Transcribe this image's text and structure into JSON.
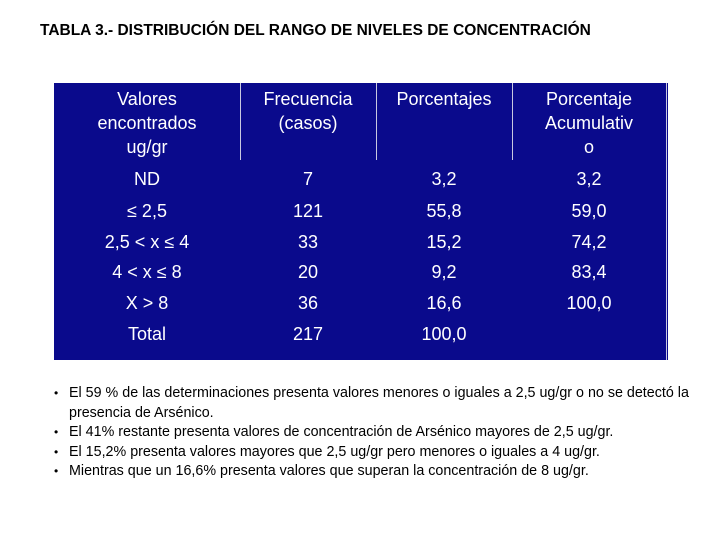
{
  "title": "TABLA 3.-  DISTRIBUCIÓN DEL RANGO DE NIVELES DE CONCENTRACIÓN",
  "table": {
    "headers": [
      [
        "Valores",
        "encontrados",
        "ug/gr"
      ],
      [
        "Frecuencia",
        "(casos)"
      ],
      [
        "Porcentajes"
      ],
      [
        "Porcentaje",
        "Acumulativ",
        "o"
      ]
    ],
    "rows": [
      [
        "ND",
        "7",
        "3,2",
        "3,2"
      ],
      [
        "≤ 2,5",
        "121",
        "55,8",
        "59,0"
      ],
      [
        "2,5 < x ≤ 4",
        "33",
        "15,2",
        "74,2"
      ],
      [
        "4 < x  ≤  8",
        "20",
        "9,2",
        "83,4"
      ],
      [
        "X > 8",
        "36",
        "16,6",
        "100,0"
      ],
      [
        "Total",
        "217",
        "100,0",
        ""
      ]
    ]
  },
  "bullets": [
    "El 59 % de las determinaciones presenta valores menores o iguales a 2,5 ug/gr o no se detectó la presencia de Arsénico.",
    "El 41% restante presenta valores de concentración de Arsénico mayores de 2,5 ug/gr.",
    "El 15,2% presenta valores mayores que 2,5 ug/gr pero menores o iguales a 4 ug/gr.",
    "Mientras que un 16,6%  presenta valores  que superan la concentración de 8 ug/gr."
  ]
}
